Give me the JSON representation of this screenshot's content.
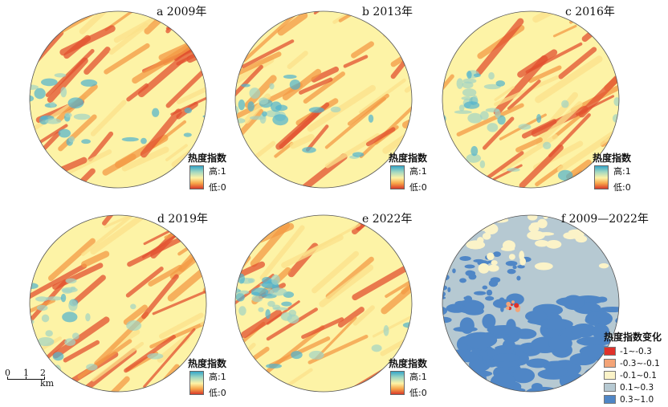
{
  "panels": [
    {
      "id": "a",
      "title": "a 2009年",
      "level": 0.55
    },
    {
      "id": "b",
      "title": "b 2013年",
      "level": 0.62
    },
    {
      "id": "c",
      "title": "c 2016年",
      "level": 0.4
    },
    {
      "id": "d",
      "title": "d 2019年",
      "level": 0.52
    },
    {
      "id": "e",
      "title": "e 2022年",
      "level": 0.35
    },
    {
      "id": "f",
      "title": "f 2009—2022年"
    }
  ],
  "heat_legend": {
    "title": "热度指数",
    "high": "高:1",
    "low": "低:0"
  },
  "change_legend": {
    "title": "热度指数变化",
    "classes": [
      {
        "label": "-1~-0.3",
        "color": "#e0312a"
      },
      {
        "label": "-0.3~-0.1",
        "color": "#f4a477"
      },
      {
        "label": "-0.1~0.1",
        "color": "#fbf3c8"
      },
      {
        "label": "0.1~0.3",
        "color": "#b6c9d2"
      },
      {
        "label": "0.3~1.0",
        "color": "#4f86c6"
      }
    ]
  },
  "scalebar": {
    "labels": [
      "0",
      "1",
      "2 km"
    ]
  },
  "colors": {
    "heat_high": "#d83a2b",
    "heat_mid": "#fdf3a6",
    "heat_low": "#35a7c9"
  }
}
